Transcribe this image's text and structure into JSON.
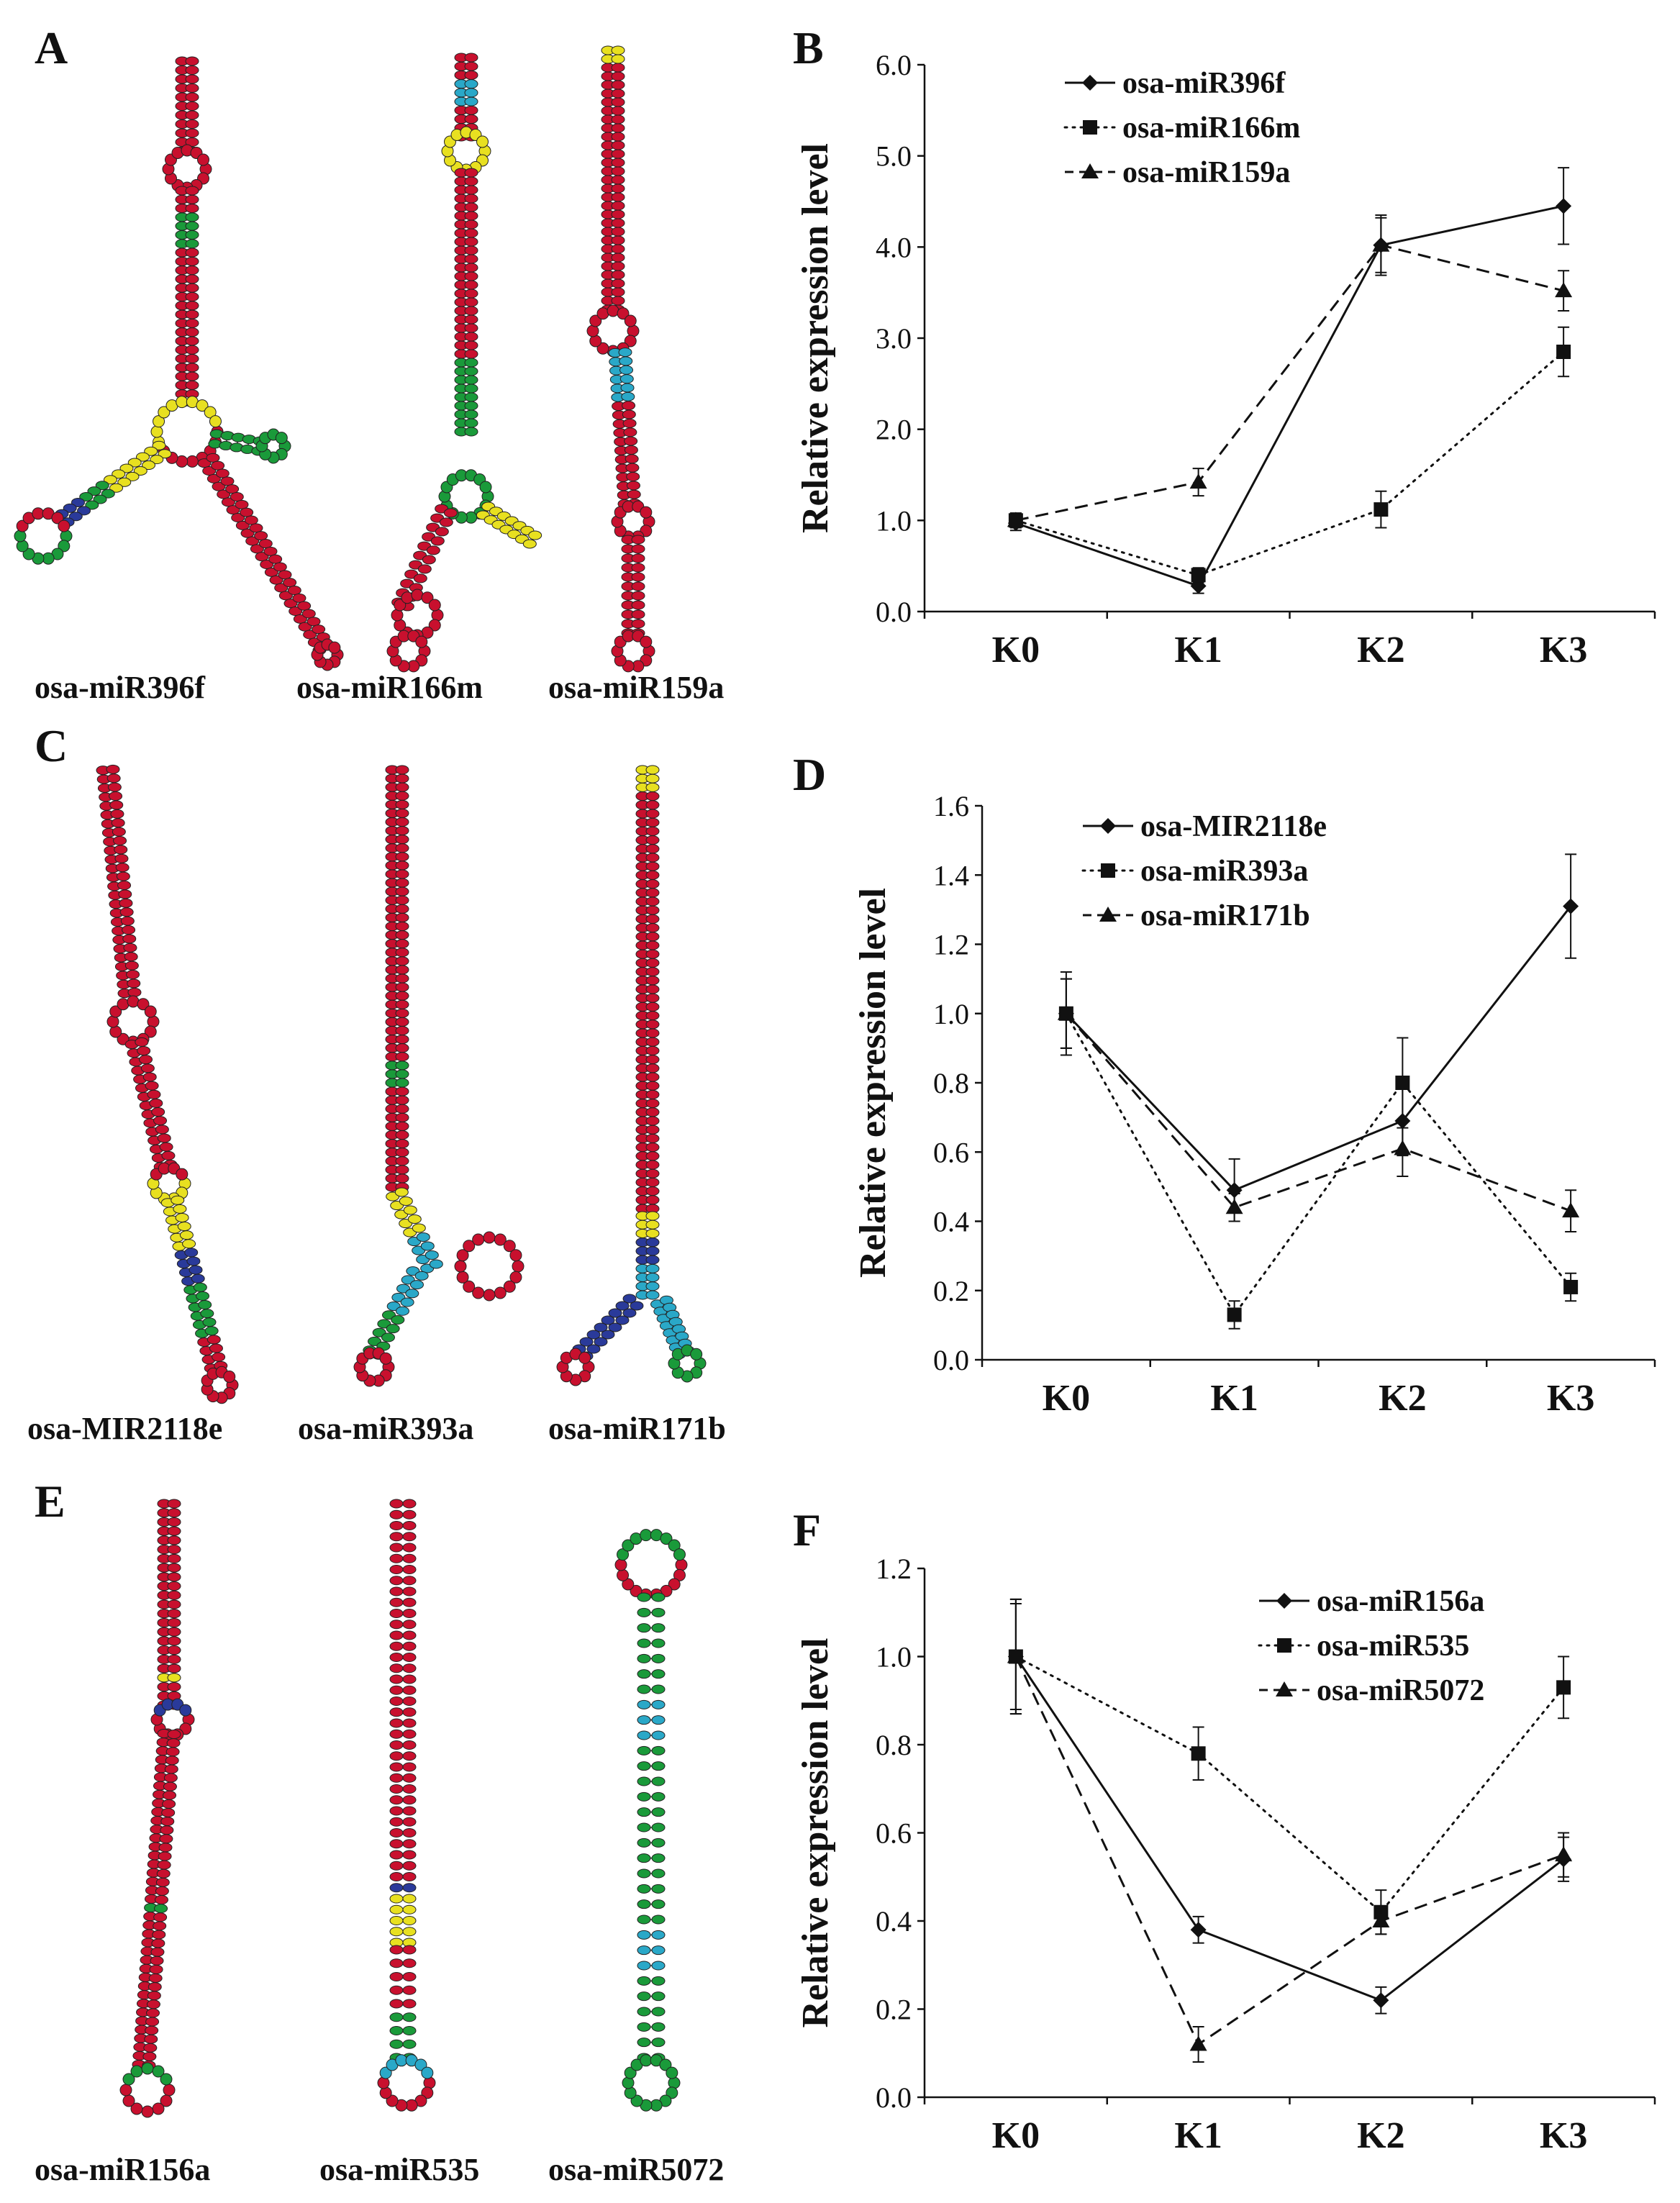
{
  "figure": {
    "panels": {
      "A": {
        "letter": "A",
        "structures": [
          "osa-miR396f",
          "osa-miR166m",
          "osa-miR159a"
        ]
      },
      "B": {
        "letter": "B"
      },
      "C": {
        "letter": "C",
        "structures": [
          "osa-MIR2118e",
          "osa-miR393a",
          "osa-miR171b"
        ]
      },
      "D": {
        "letter": "D"
      },
      "E": {
        "letter": "E",
        "structures": [
          "osa-miR156a",
          "osa-miR535",
          "osa-miR5072"
        ]
      },
      "F": {
        "letter": "F"
      }
    },
    "colors": {
      "paired": "#c8102e",
      "green": "#1a9a3a",
      "yellow": "#e8e020",
      "cyan": "#2aa8c8",
      "blue": "#2a3a9a",
      "line": "#111111"
    }
  },
  "chart_data": [
    {
      "panel": "B",
      "type": "line",
      "categories": [
        "K0",
        "K1",
        "K2",
        "K3"
      ],
      "ylabel": "Relative expression level",
      "ylim": [
        0,
        6
      ],
      "yticks": [
        "0.0",
        "1.0",
        "2.0",
        "3.0",
        "4.0",
        "5.0",
        "6.0"
      ],
      "series": [
        {
          "name": "osa-miR396f",
          "marker": "diamond",
          "style": "solid",
          "values": [
            0.97,
            0.28,
            4.02,
            4.45
          ],
          "errors": [
            0.08,
            0.08,
            0.33,
            0.42
          ]
        },
        {
          "name": "osa-miR166m",
          "marker": "square",
          "style": "dotted",
          "values": [
            1.0,
            0.4,
            1.12,
            2.85
          ],
          "errors": [
            0.08,
            0.08,
            0.2,
            0.27
          ]
        },
        {
          "name": "osa-miR159a",
          "marker": "triangle",
          "style": "dashed",
          "values": [
            1.0,
            1.42,
            4.02,
            3.52
          ],
          "errors": [
            0.08,
            0.15,
            0.3,
            0.22
          ]
        }
      ]
    },
    {
      "panel": "D",
      "type": "line",
      "categories": [
        "K0",
        "K1",
        "K2",
        "K3"
      ],
      "ylabel": "Relative expression level",
      "ylim": [
        0,
        1.6
      ],
      "yticks": [
        "0.0",
        "0.2",
        "0.4",
        "0.6",
        "0.8",
        "1.0",
        "1.2",
        "1.4",
        "1.6"
      ],
      "series": [
        {
          "name": "osa-MIR2118e",
          "marker": "diamond",
          "style": "solid",
          "values": [
            1.0,
            0.49,
            0.69,
            1.31
          ],
          "errors": [
            0.1,
            0.09,
            0.1,
            0.15
          ]
        },
        {
          "name": "osa-miR393a",
          "marker": "square",
          "style": "dotted",
          "values": [
            1.0,
            0.13,
            0.8,
            0.21
          ],
          "errors": [
            0.12,
            0.04,
            0.13,
            0.04
          ]
        },
        {
          "name": "osa-miR171b",
          "marker": "triangle",
          "style": "dashed",
          "values": [
            1.0,
            0.44,
            0.61,
            0.43
          ],
          "errors": [
            0.1,
            0.04,
            0.08,
            0.06
          ]
        }
      ]
    },
    {
      "panel": "F",
      "type": "line",
      "categories": [
        "K0",
        "K1",
        "K2",
        "K3"
      ],
      "ylabel": "Relative expression level",
      "ylim": [
        0,
        1.2
      ],
      "yticks": [
        "0.0",
        "0.2",
        "0.4",
        "0.6",
        "0.8",
        "1.0",
        "1.2"
      ],
      "series": [
        {
          "name": "osa-miR156a",
          "marker": "diamond",
          "style": "solid",
          "values": [
            1.0,
            0.38,
            0.22,
            0.54
          ],
          "errors": [
            0.13,
            0.03,
            0.03,
            0.05
          ]
        },
        {
          "name": "osa-miR535",
          "marker": "square",
          "style": "dotted",
          "values": [
            1.0,
            0.78,
            0.42,
            0.93
          ],
          "errors": [
            0.12,
            0.06,
            0.05,
            0.07
          ]
        },
        {
          "name": "osa-miR5072",
          "marker": "triangle",
          "style": "dashed",
          "values": [
            1.0,
            0.12,
            0.4,
            0.55
          ],
          "errors": [
            0.13,
            0.04,
            0.03,
            0.05
          ]
        }
      ]
    }
  ]
}
